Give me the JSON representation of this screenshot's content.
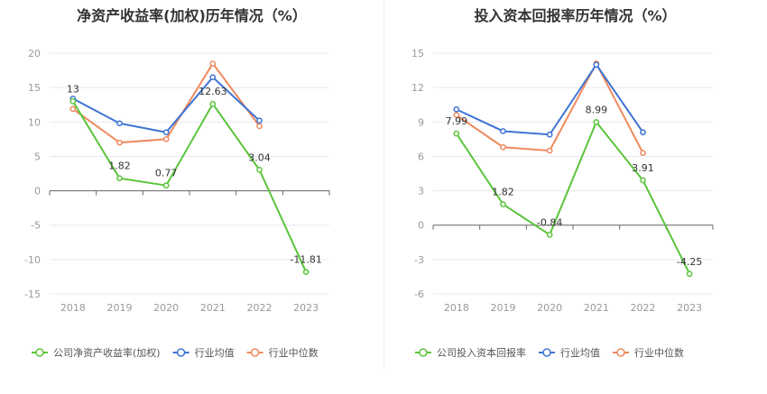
{
  "colors": {
    "company": "#5ac43a",
    "industry_avg": "#3d74d4",
    "industry_median": "#ef8a5e",
    "grid": "#e8e8f0",
    "axis": "#666666"
  },
  "chart_data": [
    {
      "type": "line",
      "title": "净资产收益率(加权)历年情况（%）",
      "categories": [
        "2018",
        "2019",
        "2020",
        "2021",
        "2022",
        "2023"
      ],
      "ylim": [
        -15,
        20
      ],
      "yticks": [
        20,
        15,
        10,
        5,
        0,
        -5,
        -10,
        -15
      ],
      "grid": true,
      "legend_position": "bottom",
      "series": [
        {
          "name": "公司净资产收益率(加权)",
          "values": [
            13,
            1.82,
            0.77,
            12.63,
            3.04,
            -11.81
          ],
          "labels": [
            "13",
            "1.82",
            "0.77",
            "12.63",
            "3.04",
            "-11.81"
          ]
        },
        {
          "name": "行业均值",
          "values": [
            13.4,
            9.8,
            8.5,
            16.5,
            10.2,
            null
          ]
        },
        {
          "name": "行业中位数",
          "values": [
            11.9,
            7.0,
            7.5,
            18.5,
            9.4,
            null
          ]
        }
      ]
    },
    {
      "type": "line",
      "title": "投入资本回报率历年情况（%）",
      "categories": [
        "2018",
        "2019",
        "2020",
        "2021",
        "2022",
        "2023"
      ],
      "ylim": [
        -6,
        15
      ],
      "yticks": [
        15,
        12,
        9,
        6,
        3,
        0,
        -3,
        -6
      ],
      "grid": true,
      "legend_position": "bottom",
      "series": [
        {
          "name": "公司投入资本回报率",
          "values": [
            7.99,
            1.82,
            -0.84,
            8.99,
            3.91,
            -4.25
          ],
          "labels": [
            "7.99",
            "1.82",
            "-0.84",
            "8.99",
            "3.91",
            "-4.25"
          ]
        },
        {
          "name": "行业均值",
          "values": [
            10.1,
            8.2,
            7.9,
            14.0,
            8.1,
            null
          ]
        },
        {
          "name": "行业中位数",
          "values": [
            9.6,
            6.8,
            6.5,
            14.1,
            6.3,
            null
          ]
        }
      ]
    }
  ]
}
